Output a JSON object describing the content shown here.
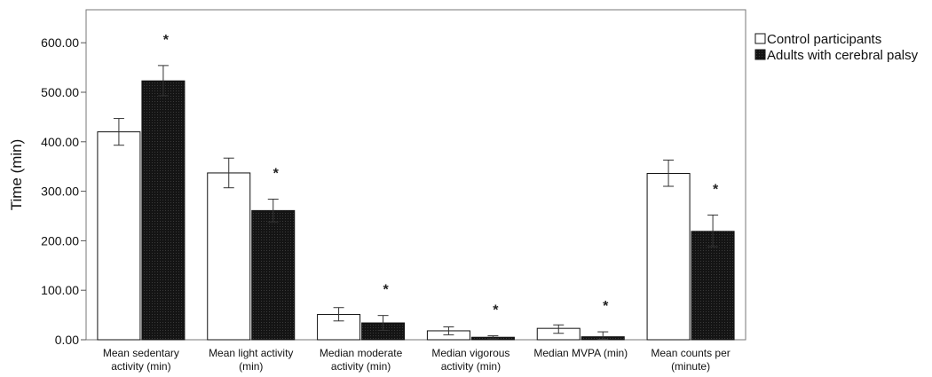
{
  "chart_data": {
    "type": "bar",
    "title": "",
    "xlabel": "",
    "ylabel": "Time (min)",
    "ylim": [
      0,
      650
    ],
    "yticks": [
      "0.00",
      "100.00",
      "200.00",
      "300.00",
      "400.00",
      "500.00",
      "600.00"
    ],
    "ytick_values": [
      0,
      100,
      200,
      300,
      400,
      500,
      600
    ],
    "categories": [
      [
        "Mean sedentary",
        "activity (min)"
      ],
      [
        "Mean light activity",
        "(min)"
      ],
      [
        "Median moderate",
        "activity (min)"
      ],
      [
        "Median vigorous",
        "activity (min)"
      ],
      [
        "Median MVPA (min)"
      ],
      [
        "Mean counts per",
        "(minute)"
      ]
    ],
    "series": [
      {
        "name": "Control participants",
        "color": "#ffffff",
        "values": [
          420,
          337,
          51,
          18,
          23,
          336
        ],
        "error_low": [
          393,
          307,
          38,
          10,
          13,
          310
        ],
        "error_high": [
          447,
          367,
          65,
          26,
          30,
          363
        ]
      },
      {
        "name": "Adults with cerebral palsy",
        "color": "#1a1a1a",
        "values": [
          523,
          261,
          34,
          5,
          6,
          219
        ],
        "error_low": [
          493,
          238,
          19,
          2,
          1,
          188
        ],
        "error_high": [
          554,
          284,
          49,
          8,
          16,
          252
        ]
      }
    ],
    "significance_marker": "*",
    "significant": [
      true,
      true,
      true,
      true,
      true,
      true
    ],
    "legend_position": "right",
    "grid": false
  }
}
